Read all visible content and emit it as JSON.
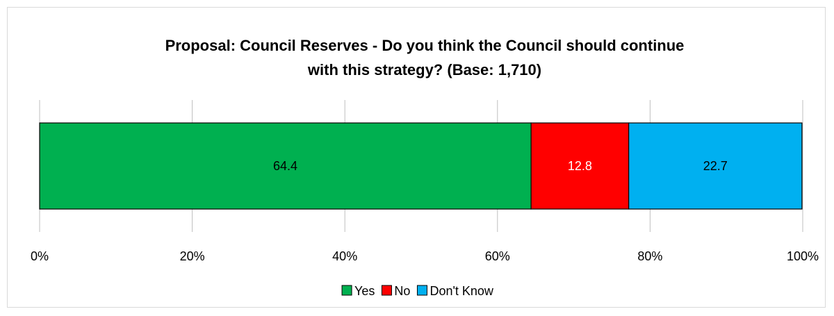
{
  "chart_data": {
    "type": "bar",
    "orientation": "horizontal",
    "stacked": true,
    "title_lines": [
      "Proposal: Council Reserves - Do you think the Council should continue",
      "with this strategy? (Base: 1,710)"
    ],
    "categories": [
      ""
    ],
    "series": [
      {
        "name": "Yes",
        "values": [
          64.4
        ],
        "color": "#00b050",
        "label_color": "#000000"
      },
      {
        "name": "No",
        "values": [
          12.8
        ],
        "color": "#ff0000",
        "label_color": "#ffffff"
      },
      {
        "name": "Don't Know",
        "values": [
          22.7
        ],
        "color": "#00b0f0",
        "label_color": "#000000"
      }
    ],
    "x_ticks": [
      "0%",
      "20%",
      "40%",
      "60%",
      "80%",
      "100%"
    ],
    "x_range": [
      0,
      100
    ],
    "grid": "vertical",
    "legend_position": "bottom"
  }
}
